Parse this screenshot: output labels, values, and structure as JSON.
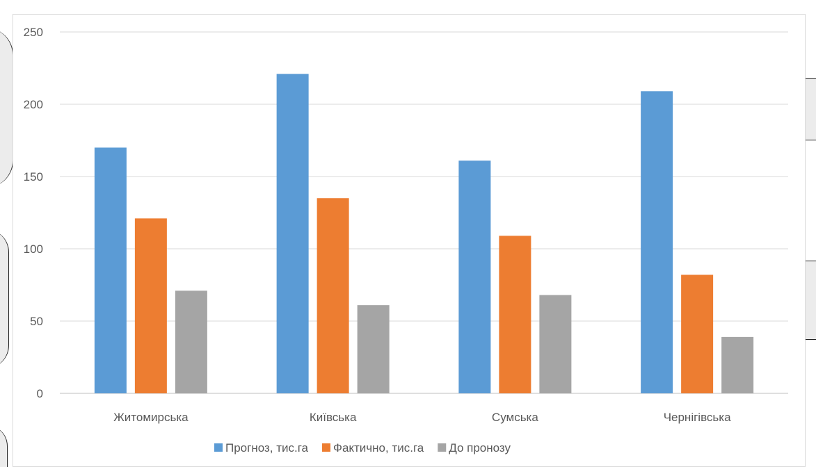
{
  "chart_data": {
    "type": "bar",
    "title": "",
    "xlabel": "",
    "ylabel": "",
    "categories": [
      "Житомирська",
      "Київська",
      "Сумська",
      "Чернігівська"
    ],
    "series": [
      {
        "name": "Прогноз, тис.га",
        "color": "#5b9bd5",
        "values": [
          170,
          221,
          161,
          209
        ]
      },
      {
        "name": "Фактично, тис.га",
        "color": "#ed7d31",
        "values": [
          121,
          135,
          109,
          82
        ]
      },
      {
        "name": "До пронозу",
        "color": "#a5a5a5",
        "values": [
          71,
          61,
          68,
          39
        ]
      }
    ],
    "ylim": [
      0,
      250
    ],
    "yticks": [
      0,
      50,
      100,
      150,
      200,
      250
    ],
    "grid": true,
    "legend_position": "bottom"
  }
}
